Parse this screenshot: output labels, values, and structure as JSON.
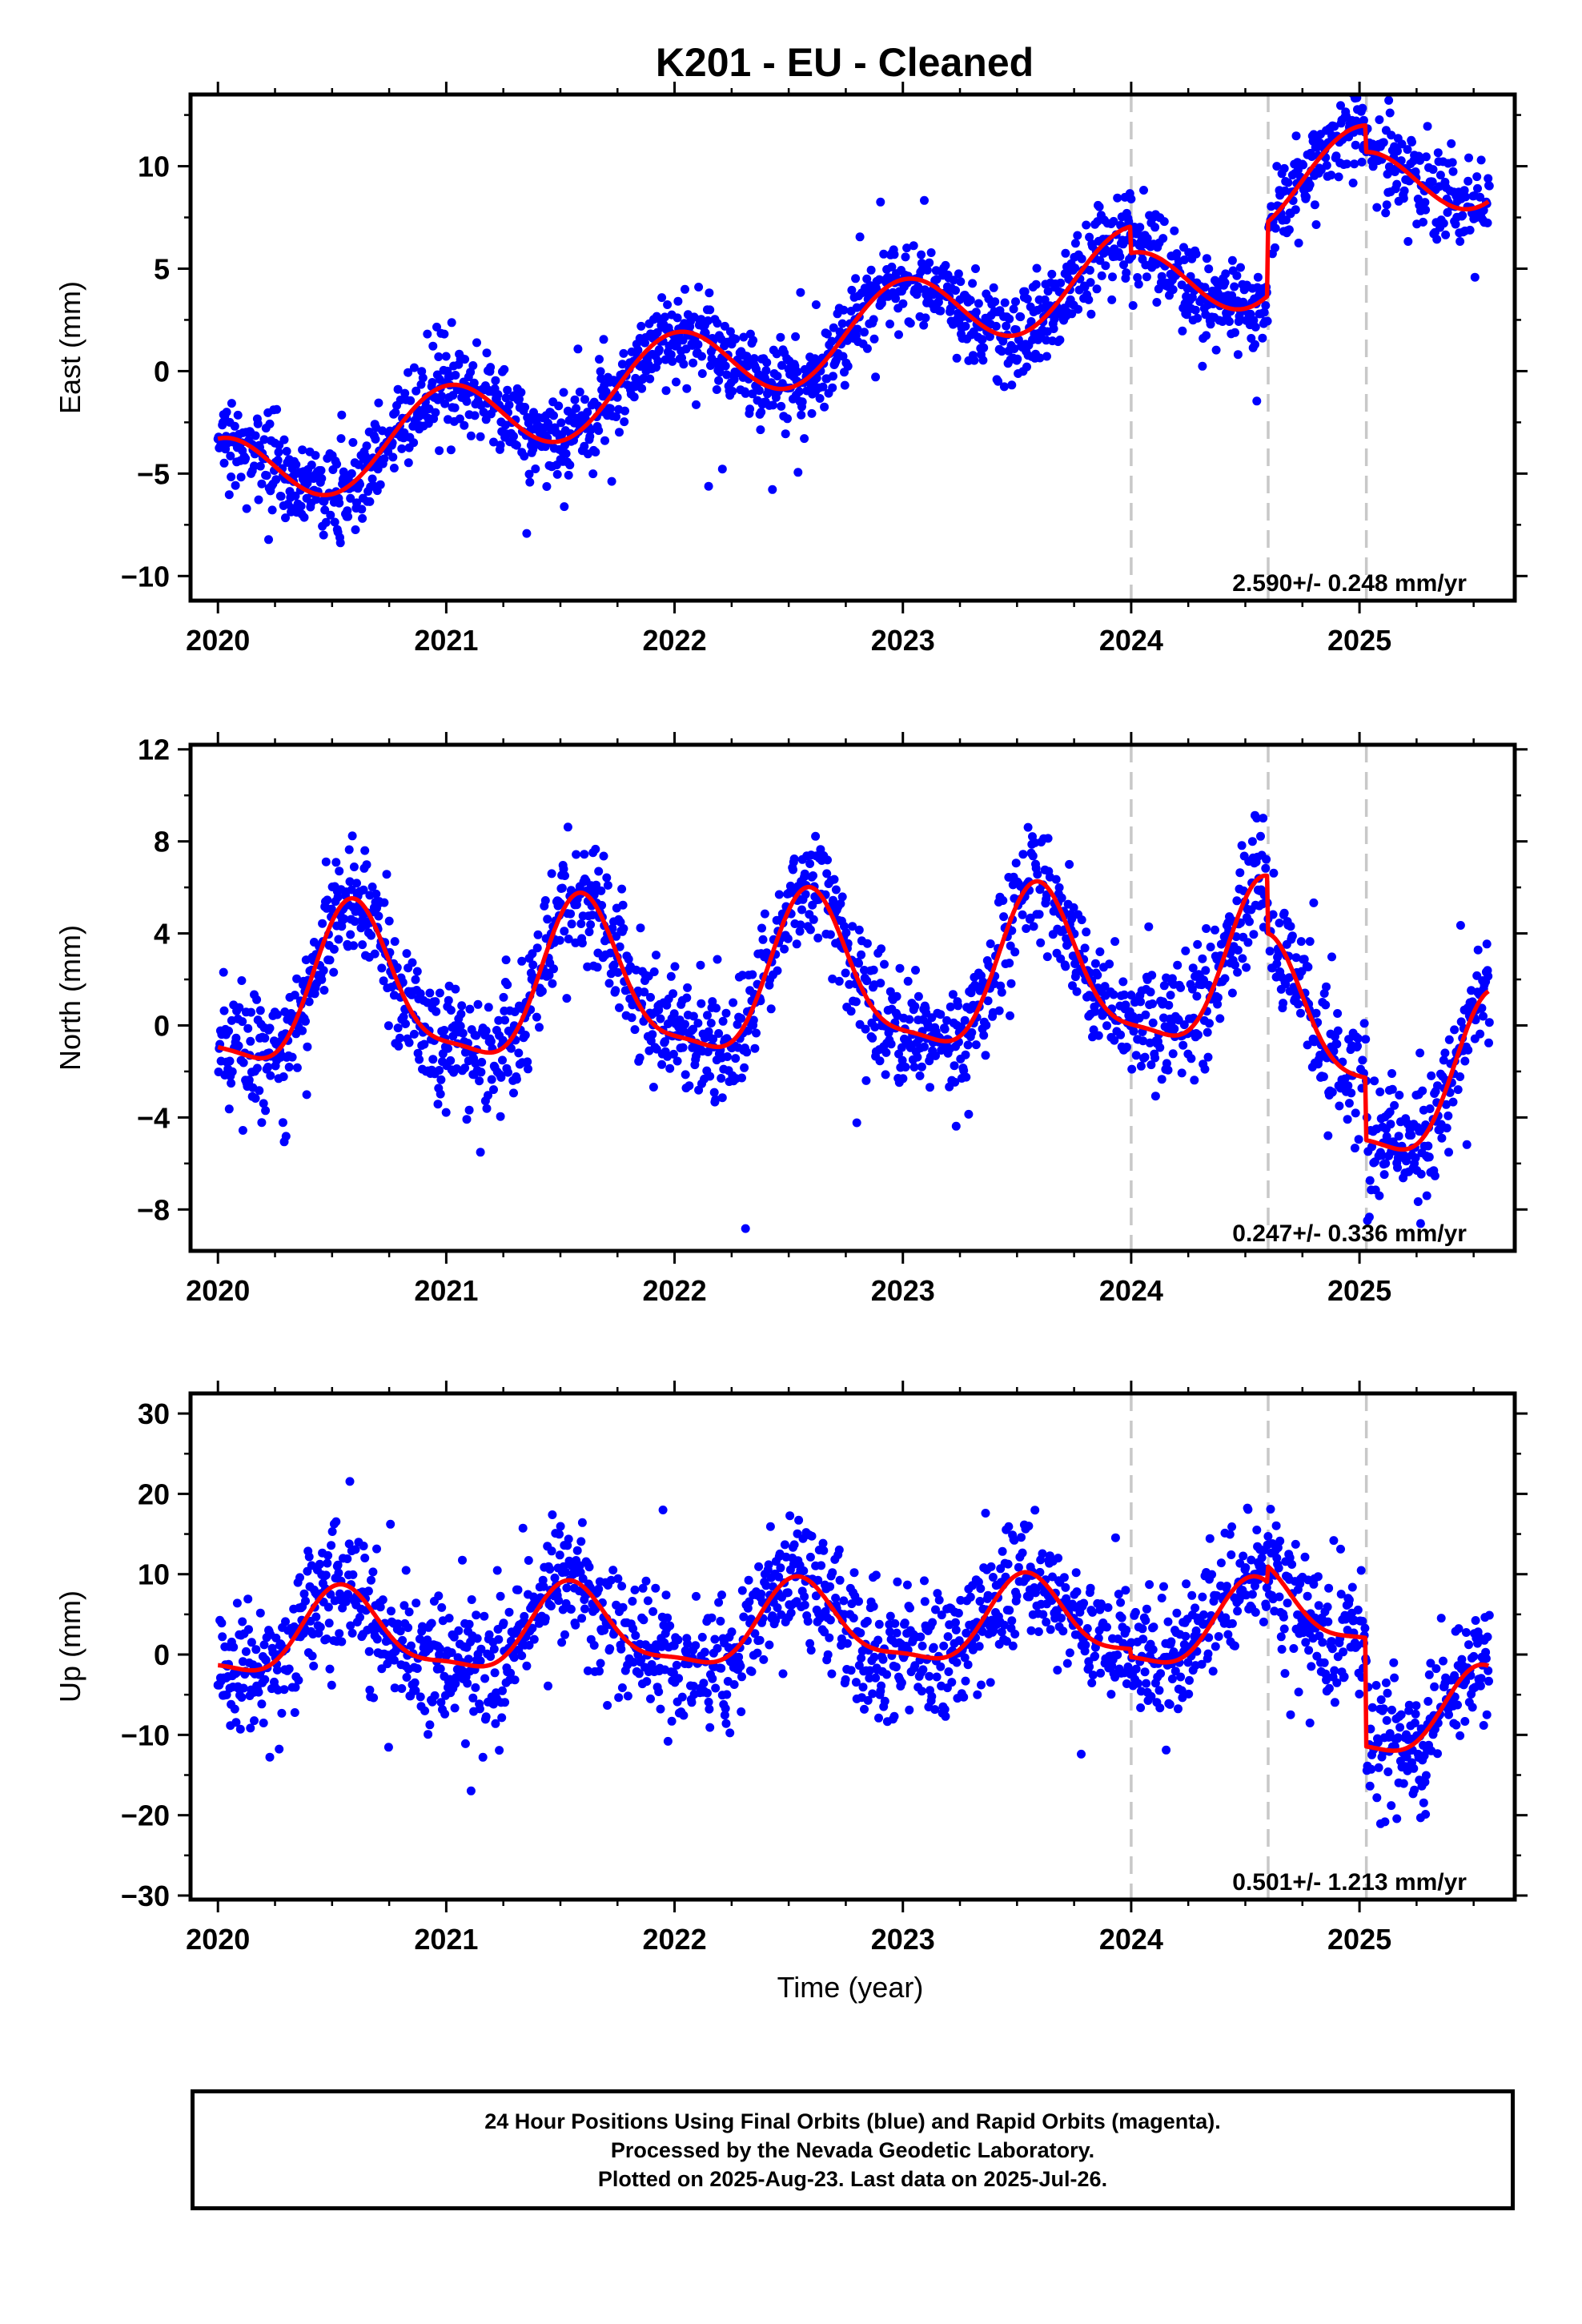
{
  "title": "K201  - EU - Cleaned",
  "xlabel": "Time (year)",
  "footer": {
    "line1": "24 Hour Positions Using Final Orbits (blue) and Rapid Orbits (magenta).",
    "line2": "Processed by the Nevada Geodetic Laboratory.",
    "line3": "Plotted on 2025-Aug-23. Last data on 2025-Jul-26."
  },
  "colors": {
    "points": "#0000ff",
    "model": "#ff0000",
    "steps": "#c8c8c8"
  },
  "chart_data": [
    {
      "type": "scatter",
      "component": "East",
      "ylabel": "East (mm)",
      "xlim": [
        2019.88,
        2025.68
      ],
      "ylim": [
        -11.2,
        13.5
      ],
      "xticks": [
        2020,
        2021,
        2022,
        2023,
        2024,
        2025
      ],
      "xtick_labels": [
        "2020",
        "2021",
        "2022",
        "2023",
        "2024",
        "2025"
      ],
      "yticks": [
        -10,
        -5,
        0,
        5,
        10
      ],
      "ytick_labels": [
        "−10",
        "−5",
        "0",
        "5",
        "10"
      ],
      "rate_label": "2.590+/- 0.248 mm/yr",
      "steps": [
        2024.0,
        2024.6,
        2025.03
      ],
      "model": {
        "velocity": 2.59,
        "offset": -5.3,
        "annual_amplitude": 2.0,
        "annual_phase": 0.75,
        "step_offsets": [
          -1.3,
          3.6,
          -1.3
        ],
        "step_ramps": [
          [
            2024.6,
            2024.605,
            -1.5
          ]
        ]
      },
      "noise_sigma": 1.1,
      "series": [
        {
          "label": "positions",
          "x": [],
          "y": []
        },
        {
          "label": "model",
          "x": [],
          "y": []
        }
      ]
    },
    {
      "type": "scatter",
      "component": "North",
      "ylabel": "North (mm)",
      "xlim": [
        2019.88,
        2025.68
      ],
      "ylim": [
        -9.8,
        12.2
      ],
      "xticks": [
        2020,
        2021,
        2022,
        2023,
        2024,
        2025
      ],
      "xtick_labels": [
        "2020",
        "2021",
        "2022",
        "2023",
        "2024",
        "2025"
      ],
      "yticks": [
        -8,
        -4,
        0,
        4,
        8,
        12
      ],
      "ytick_labels": [
        "−8",
        "−4",
        "0",
        "4",
        "8",
        "12"
      ],
      "rate_label": "0.247+/- 0.336 mm/yr",
      "steps": [
        2024.0,
        2024.6,
        2025.03
      ],
      "model": {
        "velocity": 0.247,
        "offset": 1.2,
        "annual_amplitude": 3.3,
        "annual_phase": 0.35,
        "semiannual_amplitude": 0.9,
        "step_offsets": [
          0.0,
          -2.5,
          -2.7
        ]
      },
      "noise_sigma": 1.3,
      "series": [
        {
          "label": "positions",
          "x": [],
          "y": []
        },
        {
          "label": "model",
          "x": [],
          "y": []
        }
      ]
    },
    {
      "type": "scatter",
      "component": "Up",
      "ylabel": "Up (mm)",
      "xlim": [
        2019.88,
        2025.68
      ],
      "ylim": [
        -30.5,
        32.5
      ],
      "xticks": [
        2020,
        2021,
        2022,
        2023,
        2024,
        2025
      ],
      "xtick_labels": [
        "2020",
        "2021",
        "2022",
        "2023",
        "2024",
        "2025"
      ],
      "yticks": [
        -30,
        -20,
        -10,
        0,
        10,
        20,
        30
      ],
      "ytick_labels": [
        "−30",
        "−20",
        "−10",
        "0",
        "10",
        "20",
        "30"
      ],
      "rate_label": "0.501+/- 1.213 mm/yr",
      "steps": [
        2024.0,
        2024.6,
        2025.03
      ],
      "model": {
        "velocity": 0.501,
        "offset": 2.0,
        "annual_amplitude": 5.0,
        "annual_phase": 0.3,
        "semiannual_amplitude": 1.5,
        "step_offsets": [
          -1.0,
          2.0,
          -13.5
        ]
      },
      "noise_sigma": 4.0,
      "series": [
        {
          "label": "positions",
          "x": [],
          "y": []
        },
        {
          "label": "model",
          "x": [],
          "y": []
        }
      ]
    }
  ]
}
